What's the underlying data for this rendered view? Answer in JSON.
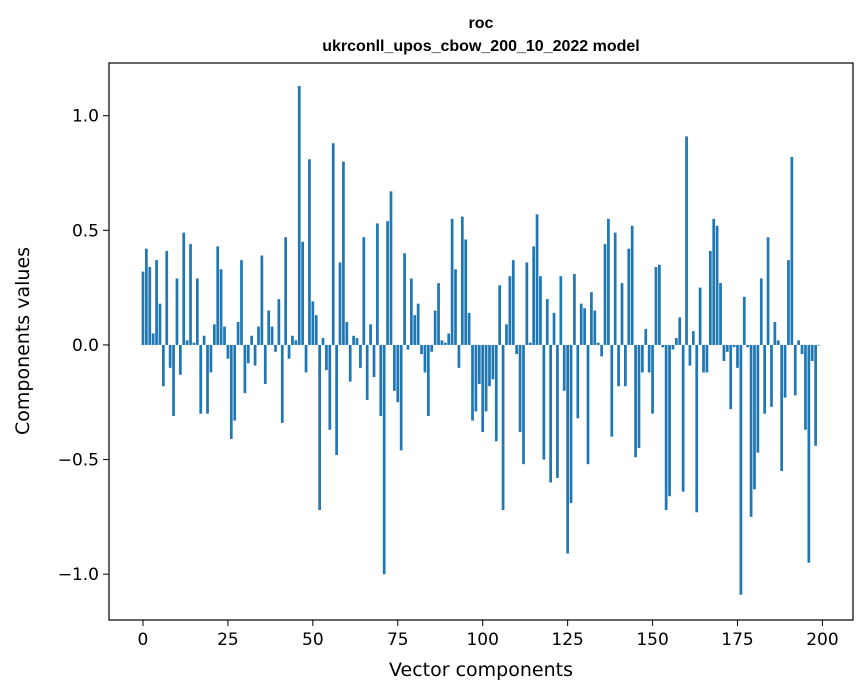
{
  "chart_data": {
    "type": "bar",
    "title": "roc",
    "subtitle": "ukrconll_upos_cbow_200_10_2022 model",
    "xlabel": "Vector components",
    "ylabel": "Components values",
    "xlim": [
      -10,
      209
    ],
    "ylim": [
      -1.2,
      1.23
    ],
    "xticks": [
      0,
      25,
      50,
      75,
      100,
      125,
      150,
      175,
      200
    ],
    "xtick_labels": [
      "0",
      "25",
      "50",
      "75",
      "100",
      "125",
      "150",
      "175",
      "200"
    ],
    "yticks": [
      1.0,
      0.5,
      0.0,
      -0.5,
      -1.0
    ],
    "ytick_labels": [
      "1.0",
      "0.5",
      "0.0",
      "−0.5",
      "−1.0"
    ],
    "bar_color": "#1f77b4",
    "grid": false,
    "x": [
      0,
      1,
      2,
      3,
      4,
      5,
      6,
      7,
      8,
      9,
      10,
      11,
      12,
      13,
      14,
      15,
      16,
      17,
      18,
      19,
      20,
      21,
      22,
      23,
      24,
      25,
      26,
      27,
      28,
      29,
      30,
      31,
      32,
      33,
      34,
      35,
      36,
      37,
      38,
      39,
      40,
      41,
      42,
      43,
      44,
      45,
      46,
      47,
      48,
      49,
      50,
      51,
      52,
      53,
      54,
      55,
      56,
      57,
      58,
      59,
      60,
      61,
      62,
      63,
      64,
      65,
      66,
      67,
      68,
      69,
      70,
      71,
      72,
      73,
      74,
      75,
      76,
      77,
      78,
      79,
      80,
      81,
      82,
      83,
      84,
      85,
      86,
      87,
      88,
      89,
      90,
      91,
      92,
      93,
      94,
      95,
      96,
      97,
      98,
      99,
      100,
      101,
      102,
      103,
      104,
      105,
      106,
      107,
      108,
      109,
      110,
      111,
      112,
      113,
      114,
      115,
      116,
      117,
      118,
      119,
      120,
      121,
      122,
      123,
      124,
      125,
      126,
      127,
      128,
      129,
      130,
      131,
      132,
      133,
      134,
      135,
      136,
      137,
      138,
      139,
      140,
      141,
      142,
      143,
      144,
      145,
      146,
      147,
      148,
      149,
      150,
      151,
      152,
      153,
      154,
      155,
      156,
      157,
      158,
      159,
      160,
      161,
      162,
      163,
      164,
      165,
      166,
      167,
      168,
      169,
      170,
      171,
      172,
      173,
      174,
      175,
      176,
      177,
      178,
      179,
      180,
      181,
      182,
      183,
      184,
      185,
      186,
      187,
      188,
      189,
      190,
      191,
      192,
      193,
      194,
      195,
      196,
      197,
      198,
      199
    ],
    "values": [
      0.32,
      0.42,
      0.34,
      0.05,
      0.37,
      0.18,
      -0.18,
      0.41,
      -0.1,
      -0.31,
      0.29,
      -0.13,
      0.49,
      0.02,
      0.44,
      0.01,
      0.29,
      -0.3,
      0.04,
      -0.3,
      -0.12,
      0.09,
      0.43,
      0.33,
      0.08,
      -0.06,
      -0.41,
      -0.33,
      0.1,
      0.37,
      -0.21,
      -0.08,
      0.04,
      -0.09,
      0.08,
      0.39,
      -0.17,
      0.15,
      0.08,
      -0.03,
      0.2,
      -0.34,
      0.47,
      -0.06,
      0.04,
      0.02,
      1.13,
      0.45,
      -0.12,
      0.81,
      0.19,
      0.13,
      -0.72,
      0.03,
      -0.11,
      -0.37,
      0.88,
      -0.48,
      0.36,
      0.8,
      0.1,
      -0.16,
      0.04,
      0.03,
      -0.1,
      0.47,
      -0.24,
      0.09,
      -0.14,
      0.53,
      -0.31,
      -1.0,
      0.54,
      0.67,
      -0.2,
      -0.25,
      -0.46,
      0.4,
      -0.02,
      0.29,
      0.13,
      0.18,
      -0.04,
      -0.12,
      -0.31,
      -0.03,
      0.15,
      0.27,
      0.02,
      0.01,
      0.05,
      0.55,
      0.33,
      -0.1,
      0.56,
      0.46,
      0.14,
      -0.33,
      -0.29,
      -0.17,
      -0.38,
      -0.29,
      -0.18,
      -0.15,
      -0.42,
      0.26,
      -0.72,
      0.09,
      0.3,
      0.37,
      -0.04,
      -0.38,
      -0.52,
      0.36,
      0.01,
      0.43,
      0.57,
      0.3,
      -0.5,
      0.2,
      -0.6,
      0.14,
      -0.58,
      0.3,
      -0.2,
      -0.91,
      -0.69,
      0.31,
      -0.32,
      0.18,
      0.16,
      -0.52,
      0.23,
      0.15,
      0.01,
      -0.05,
      0.44,
      0.55,
      -0.4,
      0.49,
      -0.18,
      0.27,
      -0.18,
      0.42,
      0.52,
      -0.49,
      -0.45,
      -0.12,
      0.07,
      -0.12,
      -0.3,
      0.34,
      0.35,
      -0.01,
      -0.72,
      -0.66,
      -0.02,
      0.03,
      0.12,
      -0.64,
      0.91,
      -0.09,
      0.06,
      -0.73,
      0.25,
      -0.12,
      -0.12,
      0.41,
      0.55,
      0.52,
      0.27,
      -0.07,
      -0.03,
      -0.28,
      -0.01,
      -0.1,
      -1.09,
      0.21,
      -0.01,
      -0.75,
      -0.63,
      -0.47,
      0.29,
      -0.3,
      0.47,
      -0.27,
      0.1,
      0.02,
      -0.55,
      -0.23,
      0.37,
      0.82,
      -0.22,
      0.02,
      -0.04,
      -0.37,
      -0.95,
      -0.07,
      -0.44,
      0.0
    ]
  }
}
